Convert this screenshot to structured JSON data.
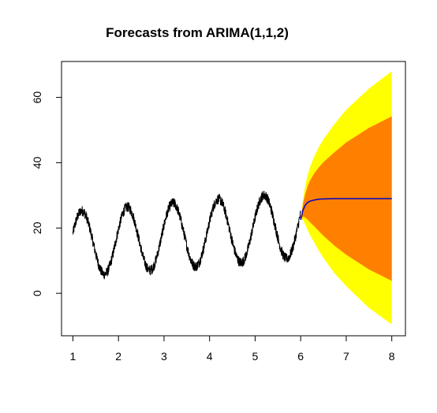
{
  "chart_data": {
    "type": "line",
    "title": "Forecasts from ARIMA(1,1,2)",
    "xlabel": "",
    "ylabel": "",
    "xlim": [
      0.75,
      8.3
    ],
    "ylim": [
      -13,
      71
    ],
    "x_ticks": [
      "1",
      "2",
      "3",
      "4",
      "5",
      "6",
      "7",
      "8"
    ],
    "y_ticks": [
      "0",
      "20",
      "40",
      "60"
    ],
    "grid": false,
    "legend": "none",
    "history": {
      "x_start": 1,
      "x_end": 6,
      "period": 1,
      "mean_start": 15,
      "mean_end": 21,
      "amplitude": 10,
      "phase_offset": 0.0,
      "color": "#000000"
    },
    "forecast": {
      "x": [
        6.0,
        6.05,
        6.1,
        6.15,
        6.2,
        6.3,
        6.4,
        6.5,
        6.75,
        7.0,
        7.5,
        8.0
      ],
      "mean": [
        22.5,
        25.5,
        27.0,
        27.8,
        28.2,
        28.6,
        28.8,
        28.9,
        29.0,
        29.0,
        29.0,
        29.0
      ],
      "lower_80": [
        22.5,
        23.5,
        23.2,
        22.6,
        21.8,
        20.5,
        19.0,
        17.6,
        14.5,
        11.8,
        7.3,
        3.8
      ],
      "upper_80": [
        22.5,
        27.5,
        30.5,
        32.7,
        34.4,
        36.8,
        38.6,
        40.2,
        43.3,
        46.2,
        50.7,
        54.2
      ],
      "lower_95": [
        22.5,
        22.5,
        21.0,
        19.5,
        18.0,
        15.5,
        13.0,
        10.8,
        6.0,
        2.2,
        -4.5,
        -9.5
      ],
      "upper_95": [
        22.5,
        28.5,
        33.0,
        36.0,
        38.5,
        42.0,
        44.8,
        47.2,
        52.0,
        56.2,
        62.7,
        68.0
      ],
      "colors": {
        "mean": "#0000cc",
        "band_80": "#ff8000",
        "band_95": "#ffff00"
      }
    }
  }
}
